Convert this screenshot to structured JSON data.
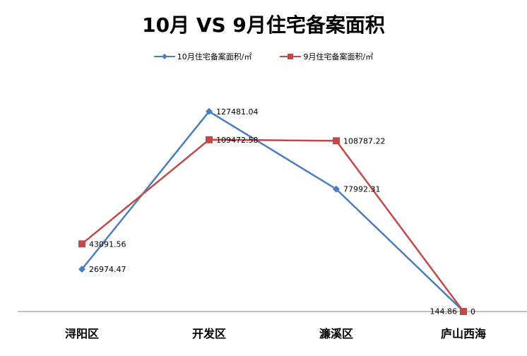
{
  "chart_data": {
    "type": "line",
    "title": "10月 VS 9月住宅备案面积",
    "categories": [
      "浔阳区",
      "开发区",
      "濂溪区",
      "庐山西海"
    ],
    "series": [
      {
        "name": "10月住宅备案面积/㎡",
        "values": [
          26974.47,
          127481.04,
          77992.31,
          144.86
        ],
        "labels": [
          "26974.47",
          "127481.04",
          "77992.31",
          "144.86"
        ],
        "color": "#4a7ebb",
        "marker": "diamond"
      },
      {
        "name": "9月住宅备案面积/㎡",
        "values": [
          43091.56,
          109472.58,
          108787.22,
          0
        ],
        "labels": [
          "43091.56",
          "109472.58",
          "108787.22",
          "0"
        ],
        "color": "#be4b48",
        "marker": "square"
      }
    ],
    "xlabel": "",
    "ylabel": "",
    "ylim": [
      0,
      140000
    ],
    "grid": false,
    "legend": "top"
  }
}
